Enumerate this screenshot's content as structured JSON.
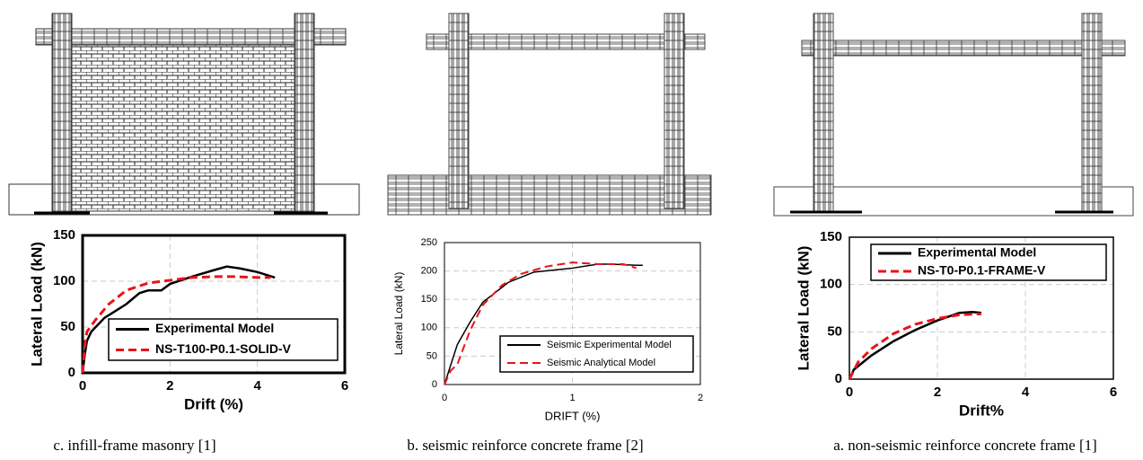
{
  "chart_data": [
    {
      "type": "line",
      "x_label": "Drift (%)",
      "y_label": "Lateral Load (kN)",
      "caption": "c. infill-frame masonry [1]",
      "xlim": [
        0,
        6
      ],
      "ylim": [
        0,
        150
      ],
      "xticks": [
        0,
        2,
        4,
        6
      ],
      "yticks": [
        0,
        50,
        100,
        150
      ],
      "grid": true,
      "legend": "lower right",
      "series": [
        {
          "name": "Experimental Model",
          "color": "#000000",
          "line_style": "solid",
          "x": [
            0,
            0.05,
            0.1,
            0.2,
            0.5,
            1,
            1.3,
            1.5,
            1.8,
            2,
            2.5,
            3,
            3.3,
            3.6,
            4,
            4.4
          ],
          "values": [
            0,
            20,
            35,
            45,
            60,
            75,
            87,
            90,
            90,
            97,
            105,
            112,
            116,
            114,
            110,
            104
          ]
        },
        {
          "name": "NS-T100-P0.1-SOLID-V",
          "color": "#e8141b",
          "line_style": "dashed",
          "x": [
            0,
            0.05,
            0.1,
            0.3,
            0.6,
            1,
            1.5,
            2,
            2.5,
            3,
            3.5,
            4,
            4.3
          ],
          "values": [
            0,
            30,
            45,
            58,
            75,
            90,
            98,
            101,
            104,
            105,
            105,
            104,
            104
          ]
        }
      ]
    },
    {
      "type": "line",
      "x_label": "DRIFT (%)",
      "y_label": "Lateral Load (kN)",
      "caption": "b. seismic reinforce concrete frame [2]",
      "xlim": [
        0,
        2
      ],
      "ylim": [
        0,
        250
      ],
      "xticks": [
        0,
        1,
        2
      ],
      "yticks": [
        0,
        50,
        100,
        150,
        200,
        250
      ],
      "grid": true,
      "legend": "lower right",
      "series": [
        {
          "name": "Seismic Experimental Model",
          "color": "#000000",
          "line_style": "solid",
          "x": [
            0,
            0.1,
            0.2,
            0.3,
            0.5,
            0.7,
            1,
            1.2,
            1.3,
            1.5,
            1.55
          ],
          "values": [
            0,
            70,
            110,
            145,
            180,
            198,
            205,
            212,
            212,
            210,
            210
          ]
        },
        {
          "name": "Seismic Analytical Model",
          "color": "#e8141b",
          "line_style": "dashed",
          "x": [
            0,
            0.05,
            0.1,
            0.2,
            0.3,
            0.45,
            0.6,
            0.8,
            1,
            1.2,
            1.4,
            1.5
          ],
          "values": [
            0,
            25,
            35,
            95,
            140,
            175,
            195,
            208,
            215,
            212,
            212,
            205
          ]
        }
      ]
    },
    {
      "type": "line",
      "x_label": "Drift%",
      "y_label": "Lateral Load (kN)",
      "caption": "a. non-seismic reinforce concrete frame [1]",
      "xlim": [
        0,
        6
      ],
      "ylim": [
        0,
        150
      ],
      "xticks": [
        0,
        2,
        4,
        6
      ],
      "yticks": [
        0,
        50,
        100,
        150
      ],
      "grid": true,
      "legend": "upper right",
      "series": [
        {
          "name": "Experimental Model",
          "color": "#000000",
          "line_style": "solid",
          "x": [
            0,
            0.1,
            0.5,
            1,
            1.5,
            2,
            2.5,
            2.8,
            3
          ],
          "values": [
            0,
            10,
            25,
            40,
            52,
            62,
            70,
            71,
            70
          ]
        },
        {
          "name": "NS-T0-P0.1-FRAME-V",
          "color": "#e8141b",
          "line_style": "dashed",
          "x": [
            0,
            0.2,
            0.5,
            1,
            1.5,
            2,
            2.5,
            3
          ],
          "values": [
            0,
            18,
            32,
            48,
            58,
            64,
            68,
            69
          ]
        }
      ]
    }
  ]
}
